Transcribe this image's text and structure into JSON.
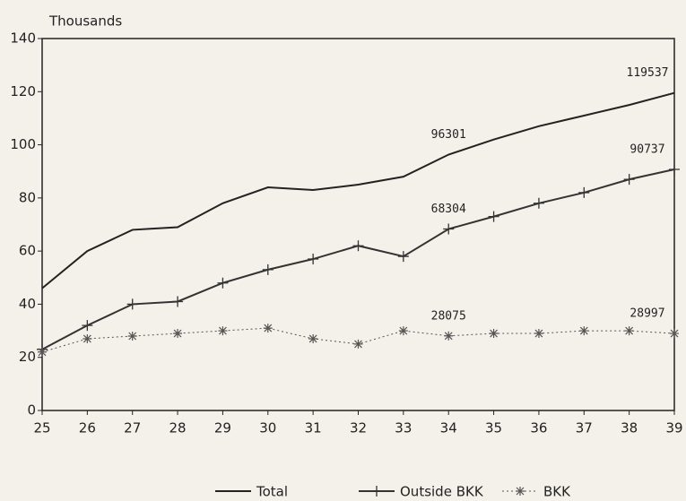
{
  "chart_data": {
    "type": "line",
    "y_label": "Thousands",
    "categories": [
      "25",
      "26",
      "27",
      "28",
      "29",
      "30",
      "31",
      "32",
      "33",
      "34",
      "35",
      "36",
      "37",
      "38",
      "39"
    ],
    "series": [
      {
        "name": "Total",
        "color": "#222222",
        "marker": "none",
        "values": [
          46,
          60,
          68,
          69,
          78,
          84,
          83,
          85,
          88,
          96.301,
          102,
          107,
          111,
          115,
          119.537
        ],
        "value_labels": [
          null,
          null,
          null,
          null,
          null,
          null,
          null,
          null,
          null,
          "96301",
          null,
          null,
          null,
          null,
          "119537"
        ]
      },
      {
        "name": "Outside BKK",
        "color": "#333333",
        "marker": "plus",
        "values": [
          23,
          32,
          40,
          41,
          48,
          53,
          57,
          62,
          58,
          68.304,
          73,
          78,
          82,
          87,
          90.737
        ],
        "value_labels": [
          null,
          null,
          null,
          null,
          null,
          null,
          null,
          null,
          null,
          "68304",
          null,
          null,
          null,
          null,
          "90737"
        ]
      },
      {
        "name": "BKK",
        "color": "#555555",
        "marker": "asterisk",
        "dash": true,
        "values": [
          22,
          27,
          28,
          29,
          30,
          31,
          27,
          25,
          30,
          28.075,
          29,
          29,
          30,
          30,
          28.997
        ],
        "value_labels": [
          null,
          null,
          null,
          null,
          null,
          null,
          null,
          null,
          null,
          "28075",
          null,
          null,
          null,
          null,
          "28997"
        ]
      }
    ],
    "ylim": [
      0,
      140
    ],
    "yticks": [
      0,
      20,
      40,
      60,
      80,
      100,
      120,
      140
    ],
    "legend": "bottom"
  }
}
